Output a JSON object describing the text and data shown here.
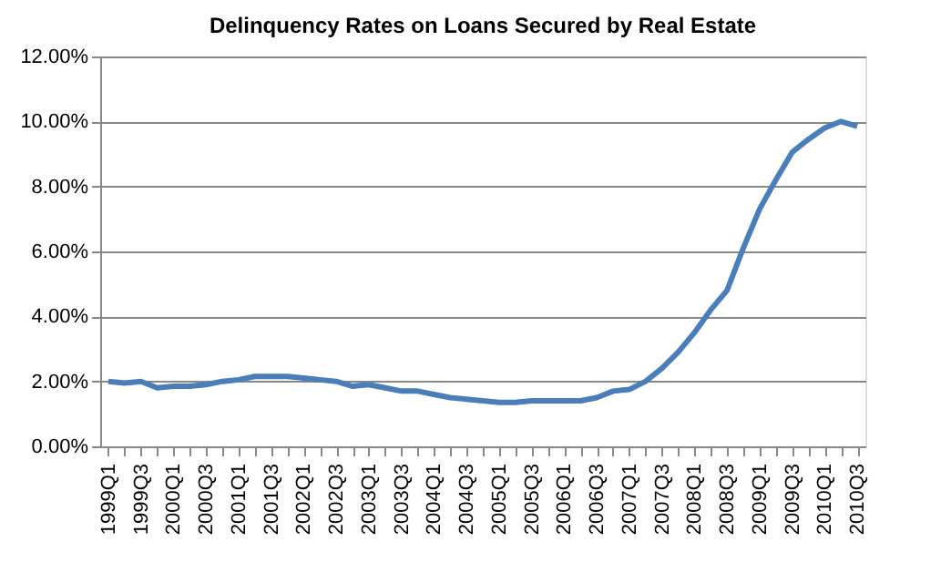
{
  "chart_data": {
    "type": "line",
    "title": "Delinquency Rates on Loans Secured by Real Estate",
    "categories": [
      "1999Q1",
      null,
      "1999Q3",
      null,
      "2000Q1",
      null,
      "2000Q3",
      null,
      "2001Q1",
      null,
      "2001Q3",
      null,
      "2002Q1",
      null,
      "2002Q3",
      null,
      "2003Q1",
      null,
      "2003Q3",
      null,
      "2004Q1",
      null,
      "2004Q3",
      null,
      "2005Q1",
      null,
      "2005Q3",
      null,
      "2006Q1",
      null,
      "2006Q3",
      null,
      "2007Q1",
      null,
      "2007Q3",
      null,
      "2008Q1",
      null,
      "2008Q3",
      null,
      "2009Q1",
      null,
      "2009Q3",
      null,
      "2010Q1",
      null,
      "2010Q3"
    ],
    "series": [
      {
        "color": "#4a7ebb",
        "values": [
          2.0,
          1.95,
          2.0,
          1.8,
          1.85,
          1.85,
          1.9,
          2.0,
          2.05,
          2.15,
          2.15,
          2.15,
          2.1,
          2.05,
          2.0,
          1.85,
          1.9,
          1.8,
          1.7,
          1.7,
          1.6,
          1.5,
          1.45,
          1.4,
          1.35,
          1.35,
          1.4,
          1.4,
          1.4,
          1.4,
          1.5,
          1.7,
          1.75,
          2.0,
          2.4,
          2.9,
          3.5,
          4.2,
          4.8,
          6.1,
          7.3,
          8.2,
          9.05,
          9.45,
          9.8,
          10.0,
          9.85
        ]
      }
    ],
    "ylim": [
      0,
      12
    ],
    "yticks": [
      {
        "value": 0,
        "label": "0.00%"
      },
      {
        "value": 2,
        "label": "2.00%"
      },
      {
        "value": 4,
        "label": "4.00%"
      },
      {
        "value": 6,
        "label": "6.00%"
      },
      {
        "value": 8,
        "label": "8.00%"
      },
      {
        "value": 10,
        "label": "10.00%"
      },
      {
        "value": 12,
        "label": "12.00%"
      }
    ],
    "grid": "y",
    "marker": "none",
    "line_style": "solid"
  }
}
